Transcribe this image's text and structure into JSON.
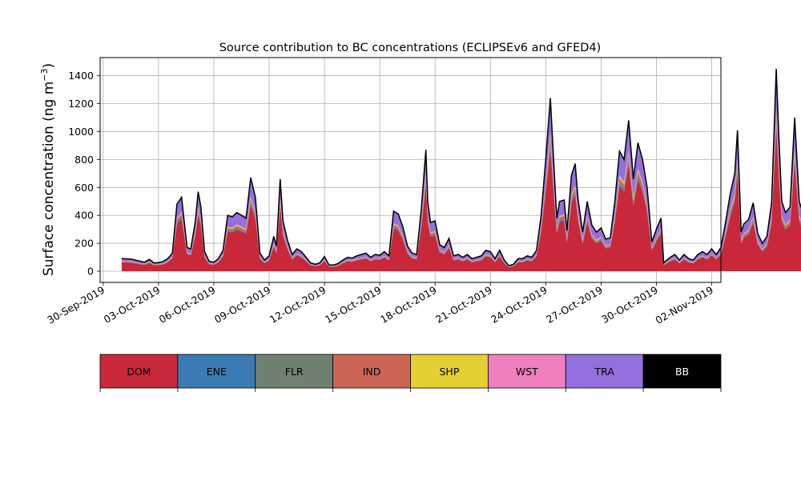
{
  "chart_data": {
    "type": "area",
    "stacked": true,
    "title": "Source contribution to BC concentrations (ECLIPSEv6 and GFED4)",
    "ylabel": "Surface concentration (ng m",
    "ylabel_superscript": "−3",
    "ylabel_suffix": ")",
    "xlabel": "",
    "x_start": "2019-10-01",
    "x_step_days": 0.25,
    "x_ticks": [
      "30-Sep-2019",
      "03-Oct-2019",
      "06-Oct-2019",
      "09-Oct-2019",
      "12-Oct-2019",
      "15-Oct-2019",
      "18-Oct-2019",
      "21-Oct-2019",
      "24-Oct-2019",
      "27-Oct-2019",
      "30-Oct-2019",
      "02-Nov-2019"
    ],
    "xlim": [
      "2019-09-29T20:00",
      "2019-11-02T12:00"
    ],
    "y_ticks": [
      0,
      200,
      400,
      600,
      800,
      1000,
      1200,
      1400
    ],
    "ylim": [
      -80,
      1530
    ],
    "grid": true,
    "total_anchors": [
      [
        0,
        90
      ],
      [
        0.5,
        88
      ],
      [
        1,
        72
      ],
      [
        1.25,
        65
      ],
      [
        1.5,
        85
      ],
      [
        1.75,
        60
      ],
      [
        2,
        62
      ],
      [
        2.25,
        70
      ],
      [
        2.5,
        90
      ],
      [
        2.75,
        130
      ],
      [
        3,
        480
      ],
      [
        3.25,
        530
      ],
      [
        3.4,
        350
      ],
      [
        3.55,
        170
      ],
      [
        3.75,
        160
      ],
      [
        4,
        360
      ],
      [
        4.15,
        570
      ],
      [
        4.3,
        460
      ],
      [
        4.5,
        140
      ],
      [
        4.75,
        70
      ],
      [
        5,
        65
      ],
      [
        5.25,
        90
      ],
      [
        5.5,
        150
      ],
      [
        5.75,
        400
      ],
      [
        6,
        390
      ],
      [
        6.25,
        420
      ],
      [
        6.5,
        400
      ],
      [
        6.75,
        380
      ],
      [
        7,
        670
      ],
      [
        7.25,
        530
      ],
      [
        7.5,
        130
      ],
      [
        7.75,
        80
      ],
      [
        8,
        110
      ],
      [
        8.25,
        250
      ],
      [
        8.4,
        180
      ],
      [
        8.6,
        660
      ],
      [
        8.75,
        360
      ],
      [
        9,
        220
      ],
      [
        9.25,
        120
      ],
      [
        9.5,
        160
      ],
      [
        9.75,
        140
      ],
      [
        10,
        100
      ],
      [
        10.25,
        60
      ],
      [
        10.5,
        50
      ],
      [
        10.75,
        60
      ],
      [
        11,
        105
      ],
      [
        11.25,
        45
      ],
      [
        11.5,
        45
      ],
      [
        11.75,
        55
      ],
      [
        12,
        80
      ],
      [
        12.25,
        100
      ],
      [
        12.5,
        95
      ],
      [
        12.75,
        110
      ],
      [
        13,
        120
      ],
      [
        13.25,
        130
      ],
      [
        13.5,
        100
      ],
      [
        13.75,
        120
      ],
      [
        14,
        115
      ],
      [
        14.25,
        140
      ],
      [
        14.5,
        110
      ],
      [
        14.75,
        430
      ],
      [
        15,
        410
      ],
      [
        15.25,
        320
      ],
      [
        15.5,
        180
      ],
      [
        15.75,
        130
      ],
      [
        16,
        120
      ],
      [
        16.25,
        440
      ],
      [
        16.5,
        870
      ],
      [
        16.6,
        500
      ],
      [
        16.75,
        350
      ],
      [
        17,
        360
      ],
      [
        17.25,
        190
      ],
      [
        17.5,
        170
      ],
      [
        17.75,
        235
      ],
      [
        18,
        110
      ],
      [
        18.25,
        120
      ],
      [
        18.5,
        100
      ],
      [
        18.75,
        120
      ],
      [
        19,
        90
      ],
      [
        19.25,
        100
      ],
      [
        19.5,
        110
      ],
      [
        19.75,
        150
      ],
      [
        20,
        140
      ],
      [
        20.25,
        90
      ],
      [
        20.5,
        150
      ],
      [
        20.75,
        80
      ],
      [
        21,
        40
      ],
      [
        21.25,
        50
      ],
      [
        21.5,
        90
      ],
      [
        21.75,
        90
      ],
      [
        22,
        110
      ],
      [
        22.25,
        100
      ],
      [
        22.5,
        150
      ],
      [
        22.75,
        400
      ],
      [
        23,
        800
      ],
      [
        23.25,
        1240
      ],
      [
        23.5,
        620
      ],
      [
        23.6,
        380
      ],
      [
        23.75,
        500
      ],
      [
        24,
        510
      ],
      [
        24.15,
        290
      ],
      [
        24.4,
        690
      ],
      [
        24.6,
        770
      ],
      [
        24.75,
        520
      ],
      [
        25,
        280
      ],
      [
        25.25,
        500
      ],
      [
        25.5,
        330
      ],
      [
        25.75,
        280
      ],
      [
        26,
        310
      ],
      [
        26.25,
        230
      ],
      [
        26.5,
        240
      ],
      [
        26.75,
        500
      ],
      [
        27,
        860
      ],
      [
        27.25,
        800
      ],
      [
        27.5,
        1080
      ],
      [
        27.75,
        660
      ],
      [
        28,
        920
      ],
      [
        28.25,
        800
      ],
      [
        28.5,
        600
      ],
      [
        28.75,
        210
      ],
      [
        29,
        300
      ],
      [
        29.25,
        380
      ],
      [
        29.4,
        60
      ],
      [
        29.75,
        100
      ],
      [
        30,
        120
      ],
      [
        30.25,
        80
      ],
      [
        30.5,
        120
      ],
      [
        30.75,
        90
      ],
      [
        31,
        80
      ],
      [
        31.25,
        120
      ],
      [
        31.5,
        140
      ],
      [
        31.75,
        120
      ],
      [
        32,
        160
      ],
      [
        32.25,
        120
      ],
      [
        32.5,
        170
      ],
      [
        32.75,
        350
      ],
      [
        33,
        550
      ],
      [
        33.25,
        700
      ],
      [
        33.4,
        1010
      ],
      [
        33.6,
        280
      ],
      [
        33.75,
        340
      ],
      [
        34,
        370
      ],
      [
        34.25,
        490
      ],
      [
        34.5,
        270
      ],
      [
        34.75,
        200
      ],
      [
        35,
        250
      ],
      [
        35.25,
        490
      ],
      [
        35.5,
        1450
      ],
      [
        35.65,
        940
      ],
      [
        35.8,
        500
      ],
      [
        36,
        420
      ],
      [
        36.25,
        460
      ],
      [
        36.5,
        1100
      ],
      [
        36.75,
        500
      ],
      [
        37,
        400
      ],
      [
        37.25,
        850
      ],
      [
        37.35,
        840
      ]
    ],
    "series": [
      {
        "name": "DOM",
        "color": "#C8283A",
        "fraction": 0.71
      },
      {
        "name": "ENE",
        "color": "#3B7BB3",
        "fraction": 0.015
      },
      {
        "name": "FLR",
        "color": "#708070",
        "fraction": 0.02
      },
      {
        "name": "IND",
        "color": "#CD6555",
        "fraction": 0.03
      },
      {
        "name": "SHP",
        "color": "#E6CF30",
        "fraction": 0.015
      },
      {
        "name": "WST",
        "color": "#F07FBF",
        "fraction": 0.01
      },
      {
        "name": "TRA",
        "color": "#9370DB",
        "fraction": 0.2
      },
      {
        "name": "BB",
        "color": "#000000",
        "fraction": 0.0
      }
    ],
    "legend_placement": "bottom colorbar"
  },
  "legend": {
    "items": [
      {
        "label": "DOM",
        "color": "#C8283A",
        "text_color": "#000000"
      },
      {
        "label": "ENE",
        "color": "#3B7BB3",
        "text_color": "#000000"
      },
      {
        "label": "FLR",
        "color": "#708070",
        "text_color": "#000000"
      },
      {
        "label": "IND",
        "color": "#CD6555",
        "text_color": "#000000"
      },
      {
        "label": "SHP",
        "color": "#E6CF30",
        "text_color": "#000000"
      },
      {
        "label": "WST",
        "color": "#F07FBF",
        "text_color": "#000000"
      },
      {
        "label": "TRA",
        "color": "#9370DB",
        "text_color": "#000000"
      },
      {
        "label": "BB",
        "color": "#000000",
        "text_color": "#ffffff"
      }
    ]
  }
}
